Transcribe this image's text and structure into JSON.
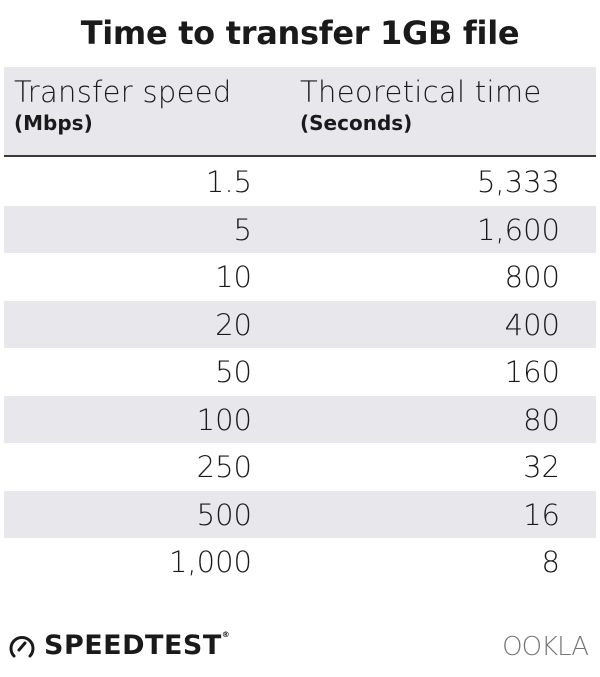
{
  "chart_data": {
    "type": "table",
    "title": "Time to transfer 1GB file",
    "columns": [
      {
        "label": "Transfer speed",
        "unit": "(Mbps)"
      },
      {
        "label": "Theoretical time",
        "unit": "(Seconds)"
      }
    ],
    "rows": [
      [
        "1.5",
        "5,333"
      ],
      [
        "5",
        "1,600"
      ],
      [
        "10",
        "800"
      ],
      [
        "20",
        "400"
      ],
      [
        "50",
        "160"
      ],
      [
        "100",
        "80"
      ],
      [
        "250",
        "32"
      ],
      [
        "500",
        "16"
      ],
      [
        "1,000",
        "8"
      ]
    ]
  },
  "footer": {
    "brand": "SPEEDTEST",
    "registered": "®",
    "logo_right": "OOKLA",
    "brand_icon": "speedometer-icon"
  },
  "colors": {
    "band": "#e8e7ec",
    "text": "#1a1a1a",
    "ookla": "#777777"
  }
}
